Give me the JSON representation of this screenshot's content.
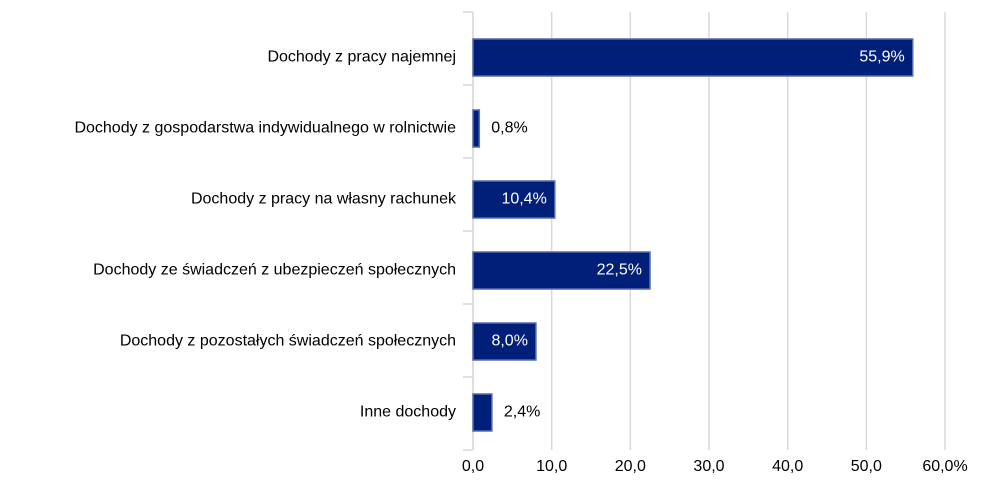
{
  "chart_data": {
    "type": "barh",
    "categories": [
      "Dochody z pracy najemnej",
      "Dochody z gospodarstwa indywidualnego w rolnictwie",
      "Dochody z pracy na własny rachunek",
      "Dochody ze świadczeń z ubezpieczeń społecznych",
      "Dochody z pozostałych świadczeń społecznych",
      "Inne dochody"
    ],
    "values": [
      55.9,
      0.8,
      10.4,
      22.5,
      8.0,
      2.4
    ],
    "value_labels": [
      "55,9%",
      "0,8%",
      "10,4%",
      "22,5%",
      "8,0%",
      "2,4%"
    ],
    "color": "#001f78",
    "xlim": [
      0,
      60
    ],
    "xticks": [
      {
        "value": 0,
        "label": "0,0"
      },
      {
        "value": 10,
        "label": "10,0"
      },
      {
        "value": 20,
        "label": "20,0"
      },
      {
        "value": 30,
        "label": "30,0"
      },
      {
        "value": 40,
        "label": "40,0"
      },
      {
        "value": 50,
        "label": "50,0"
      },
      {
        "value": 60,
        "label": "60,0%"
      }
    ],
    "grid": true
  }
}
